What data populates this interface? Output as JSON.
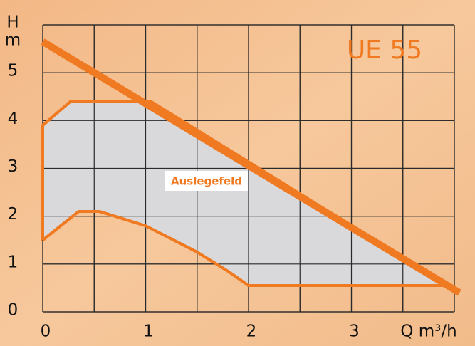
{
  "chart_data": {
    "type": "line",
    "title": "UE 55",
    "y_label": "H",
    "y_unit": "m",
    "x_label": "Q m³/h",
    "xlim": [
      0,
      4.1
    ],
    "ylim": [
      0,
      6
    ],
    "xticks": [
      0,
      1,
      2,
      3
    ],
    "yticks": [
      0,
      1,
      2,
      3,
      4,
      5
    ],
    "xgrid": [
      0,
      0.5,
      1,
      1.5,
      2,
      2.5,
      3,
      3.5,
      4
    ],
    "ygrid": [
      0,
      1,
      2,
      3,
      4,
      5,
      6
    ],
    "grid": true,
    "series": [
      {
        "color": "#f07a22",
        "x": [
          0,
          4.05
        ],
        "values": [
          5.65,
          0.4
        ]
      }
    ],
    "area": {
      "label": "Auslegefeld",
      "fill": "#d9d9dc",
      "color": "#f07a22",
      "x": [
        0,
        0,
        0.27,
        1.05,
        3.94,
        2.0,
        1.8,
        1.5,
        1.0,
        0.55,
        0.35,
        0
      ],
      "values": [
        1.5,
        3.9,
        4.4,
        4.4,
        0.55,
        0.55,
        0.85,
        1.25,
        1.8,
        2.1,
        2.1,
        1.5
      ]
    }
  }
}
